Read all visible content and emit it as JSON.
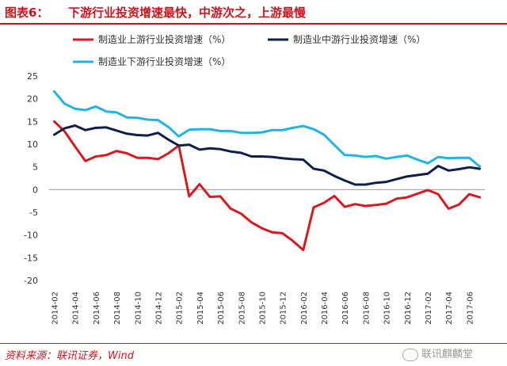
{
  "header": {
    "figure_label": "图表6：",
    "title": "下游行业投资增速最快，中游次之，上游最慢"
  },
  "footer": {
    "source": "资料来源：联讯证券，Wind",
    "watermark": "联讯麒麟堂"
  },
  "chart_data": {
    "type": "line",
    "x": [
      "2014-02",
      "2014-03",
      "2014-04",
      "2014-05",
      "2014-06",
      "2014-07",
      "2014-08",
      "2014-09",
      "2014-10",
      "2014-11",
      "2014-12",
      "2015-01",
      "2015-02",
      "2015-03",
      "2015-04",
      "2015-05",
      "2015-06",
      "2015-07",
      "2015-08",
      "2015-09",
      "2015-10",
      "2015-11",
      "2015-12",
      "2016-01",
      "2016-02",
      "2016-03",
      "2016-04",
      "2016-05",
      "2016-06",
      "2016-07",
      "2016-08",
      "2016-09",
      "2016-10",
      "2016-11",
      "2016-12",
      "2017-01",
      "2017-02",
      "2017-03",
      "2017-04",
      "2017-05",
      "2017-06",
      "2017-07"
    ],
    "xtick_labels": [
      "2014-02",
      "2014-04",
      "2014-06",
      "2014-08",
      "2014-10",
      "2014-12",
      "2015-02",
      "2015-04",
      "2015-06",
      "2015-08",
      "2015-10",
      "2015-12",
      "2016-02",
      "2016-04",
      "2016-06",
      "2016-08",
      "2016-10",
      "2016-12",
      "2017-02",
      "2017-04",
      "2017-06"
    ],
    "ylim": [
      -20,
      25
    ],
    "yticks": [
      -20,
      -15,
      -10,
      -5,
      0,
      5,
      10,
      15,
      20,
      25
    ],
    "grid": false,
    "legend_position": "top",
    "series": [
      {
        "name": "制造业上游行业投资增速（%）",
        "color": "#d71920",
        "values": [
          15.0,
          12.8,
          9.5,
          6.3,
          7.3,
          7.6,
          8.5,
          8.0,
          7.0,
          7.0,
          6.7,
          8.0,
          9.7,
          -1.5,
          1.2,
          -1.6,
          -1.5,
          -4.2,
          -5.3,
          -7.2,
          -8.5,
          -9.4,
          -9.6,
          -11.3,
          -13.3,
          -3.9,
          -2.9,
          -1.4,
          -3.8,
          -3.2,
          -3.6,
          -3.4,
          -3.1,
          -2.0,
          -1.7,
          -0.9,
          -0.1,
          -1.0,
          -4.2,
          -3.3,
          -1.0,
          -1.7
        ]
      },
      {
        "name": "制造业中游行业投资增速（%）",
        "color": "#0d1f4d",
        "values": [
          12.1,
          13.5,
          14.1,
          13.1,
          13.6,
          13.7,
          13.0,
          12.3,
          12.0,
          11.9,
          12.5,
          11.0,
          9.7,
          9.9,
          8.8,
          9.1,
          8.9,
          8.4,
          8.1,
          7.3,
          7.3,
          7.2,
          6.9,
          6.7,
          6.6,
          4.6,
          4.2,
          3.0,
          2.0,
          1.1,
          1.1,
          1.5,
          1.7,
          2.3,
          2.9,
          3.2,
          3.5,
          5.2,
          4.2,
          4.5,
          4.9,
          4.6
        ]
      },
      {
        "name": "制造业下游行业投资增速（%）",
        "color": "#1fb4e2",
        "values": [
          21.6,
          18.9,
          17.8,
          17.5,
          18.3,
          17.2,
          17.0,
          15.9,
          15.8,
          15.4,
          15.3,
          13.8,
          11.7,
          13.2,
          13.3,
          13.3,
          12.9,
          12.9,
          12.5,
          12.5,
          12.6,
          13.1,
          13.1,
          13.6,
          14.0,
          13.3,
          12.1,
          9.8,
          7.6,
          7.5,
          7.2,
          7.4,
          6.8,
          7.2,
          7.5,
          6.6,
          5.8,
          7.2,
          6.9,
          7.0,
          7.0,
          5.1
        ]
      }
    ]
  }
}
